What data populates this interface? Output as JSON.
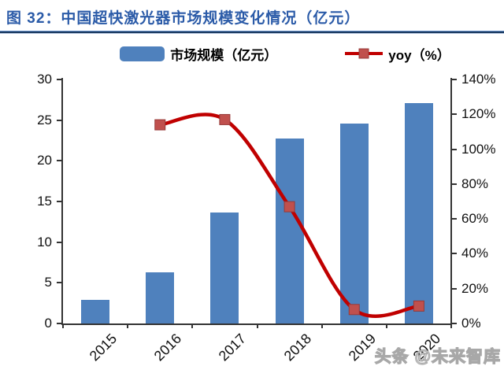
{
  "header": {
    "title": "图 32：中国超快激光器市场规模变化情况（亿元）",
    "title_color": "#2B5BA8",
    "rule_color": "#17375E"
  },
  "legend": [
    {
      "label": "市场规模（亿元）",
      "type": "bar",
      "color": "#4F81BD"
    },
    {
      "label": "yoy（%）",
      "type": "line",
      "color": "#C00000",
      "marker_color": "#C0504D",
      "marker_border": "#963A38"
    }
  ],
  "watermark": {
    "text": "头条 @未来智库"
  },
  "chart_data": {
    "type": "combo",
    "title": "中国超快激光器市场规模变化情况（亿元）",
    "categories": [
      "2015",
      "2016",
      "2017",
      "2018",
      "2019",
      "2020"
    ],
    "series": [
      {
        "name": "市场规模（亿元）",
        "type": "bar",
        "axis": "left",
        "color": "#4F81BD",
        "values": [
          2.9,
          6.3,
          13.6,
          22.7,
          24.6,
          27.1
        ]
      },
      {
        "name": "yoy（%）",
        "type": "line",
        "axis": "right",
        "color": "#C00000",
        "marker_color": "#C0504D",
        "marker_border": "#963A38",
        "values": [
          null,
          114,
          117,
          67,
          8,
          10
        ]
      }
    ],
    "left_axis": {
      "min": 0,
      "max": 30,
      "step": 5,
      "tick_labels": [
        "0",
        "5",
        "10",
        "15",
        "20",
        "25",
        "30"
      ]
    },
    "right_axis": {
      "min": 0,
      "max": 140,
      "step": 20,
      "tick_labels": [
        "0%",
        "20%",
        "40%",
        "60%",
        "80%",
        "100%",
        "120%",
        "140%"
      ]
    },
    "grid": false,
    "legend_position": "top"
  }
}
